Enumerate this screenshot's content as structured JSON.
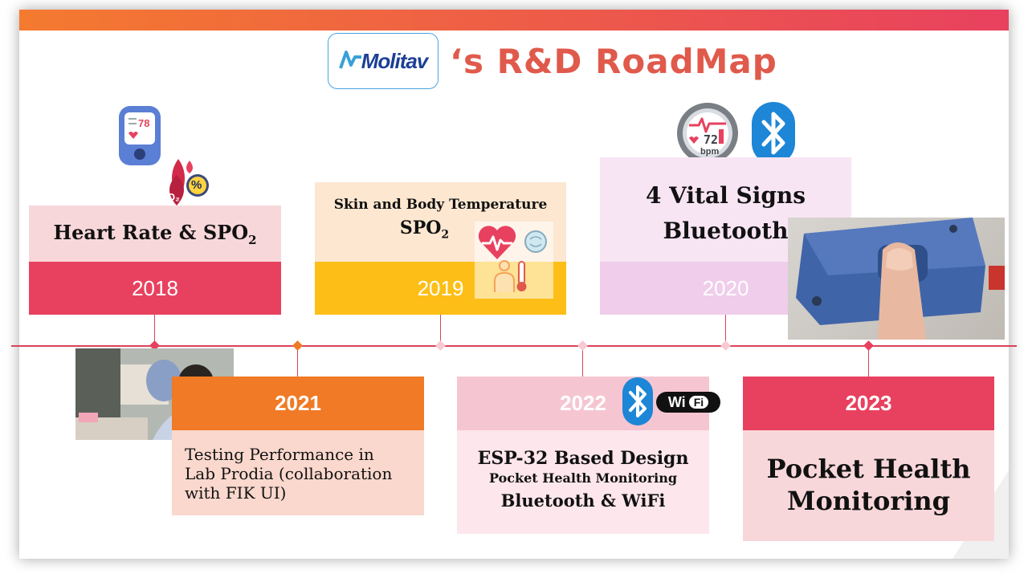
{
  "header": {
    "logo_text": "Molitav",
    "title": "‘s R&D RoadMap"
  },
  "milestones": [
    {
      "year": "2018",
      "title": "Heart Rate & SPO",
      "subscript": "2"
    },
    {
      "year": "2019",
      "line1": "Skin and Body Temperature",
      "line2": "SPO",
      "subscript": "2"
    },
    {
      "year": "2020",
      "line1": "4 Vital Signs",
      "line2": "Bluetooth"
    },
    {
      "year": "2021",
      "description": "Testing Performance in Lab Prodia (collaboration with FIK UI)"
    },
    {
      "year": "2022",
      "line1": "ESP-32 Based Design",
      "line2": "Pocket Health Monitoring",
      "line3": "Bluetooth & WiFi"
    },
    {
      "year": "2023",
      "line1": "Pocket Health",
      "line2": "Monitoring"
    }
  ],
  "icons": {
    "glucometer_value": "78",
    "o2_label": "O₂",
    "percent_label": "%",
    "bpm_value": "72",
    "bpm_label": "bpm",
    "wifi_wi": "Wi",
    "wifi_fi": "Fi"
  },
  "colors": {
    "accent_red": "#e8415f",
    "orange": "#f07a25",
    "gold": "#fdbf17",
    "lavender": "#f0cdeb"
  }
}
